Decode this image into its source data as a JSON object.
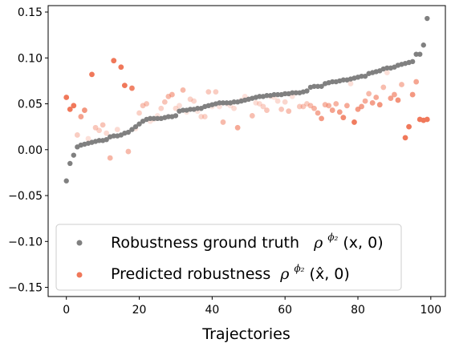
{
  "chart_data": {
    "type": "scatter",
    "title": "",
    "xlabel": "Trajectories",
    "ylabel": "",
    "xlim": [
      -5,
      104
    ],
    "ylim": [
      -0.16,
      0.157
    ],
    "xticks": [
      "0",
      "20",
      "40",
      "60",
      "80",
      "100"
    ],
    "yticks": [
      "−0.15",
      "−0.10",
      "−0.05",
      "0.00",
      "0.05",
      "0.10",
      "0.15"
    ],
    "grid": false,
    "legend_position": "lower-left",
    "series": [
      {
        "name": "ground_truth",
        "label": "Robustness ground truth",
        "math": "ρ",
        "sup": "ϕ₂",
        "args": "(x, 0)",
        "color": "#808080",
        "x": [
          0,
          1,
          2,
          3,
          4,
          5,
          6,
          7,
          8,
          9,
          10,
          11,
          12,
          13,
          14,
          15,
          16,
          17,
          18,
          19,
          20,
          21,
          22,
          23,
          24,
          25,
          26,
          27,
          28,
          29,
          30,
          31,
          32,
          33,
          34,
          35,
          36,
          37,
          38,
          39,
          40,
          41,
          42,
          43,
          44,
          45,
          46,
          47,
          48,
          49,
          50,
          51,
          52,
          53,
          54,
          55,
          56,
          57,
          58,
          59,
          60,
          61,
          62,
          63,
          64,
          65,
          66,
          67,
          68,
          69,
          70,
          71,
          72,
          73,
          74,
          75,
          76,
          77,
          78,
          79,
          80,
          81,
          82,
          83,
          84,
          85,
          86,
          87,
          88,
          89,
          90,
          91,
          92,
          93,
          94,
          95,
          96,
          97,
          98,
          99
        ],
        "y": [
          -0.034,
          -0.015,
          -0.006,
          0.003,
          0.005,
          0.006,
          0.007,
          0.008,
          0.009,
          0.01,
          0.01,
          0.011,
          0.014,
          0.015,
          0.015,
          0.016,
          0.018,
          0.019,
          0.022,
          0.025,
          0.028,
          0.031,
          0.033,
          0.034,
          0.034,
          0.034,
          0.034,
          0.035,
          0.036,
          0.036,
          0.037,
          0.042,
          0.043,
          0.043,
          0.044,
          0.044,
          0.045,
          0.045,
          0.047,
          0.048,
          0.049,
          0.05,
          0.051,
          0.051,
          0.051,
          0.051,
          0.052,
          0.052,
          0.053,
          0.054,
          0.055,
          0.056,
          0.057,
          0.058,
          0.058,
          0.059,
          0.059,
          0.06,
          0.06,
          0.06,
          0.061,
          0.061,
          0.062,
          0.062,
          0.062,
          0.063,
          0.064,
          0.068,
          0.069,
          0.069,
          0.069,
          0.072,
          0.073,
          0.074,
          0.074,
          0.075,
          0.076,
          0.076,
          0.077,
          0.078,
          0.079,
          0.08,
          0.08,
          0.083,
          0.084,
          0.085,
          0.086,
          0.088,
          0.089,
          0.089,
          0.09,
          0.092,
          0.093,
          0.094,
          0.095,
          0.096,
          0.104,
          0.104,
          0.114,
          0.143
        ]
      },
      {
        "name": "predicted",
        "label": "Predicted robustness",
        "math": "ρ",
        "sup": "ϕ₂",
        "args": "(x̂, 0)",
        "color": "#f0785a",
        "x": [
          0,
          1,
          2,
          3,
          4,
          5,
          6,
          7,
          8,
          9,
          10,
          11,
          12,
          13,
          14,
          15,
          16,
          17,
          18,
          19,
          20,
          21,
          22,
          23,
          24,
          25,
          26,
          27,
          28,
          29,
          30,
          31,
          32,
          33,
          34,
          35,
          36,
          37,
          38,
          39,
          40,
          41,
          42,
          43,
          44,
          45,
          46,
          47,
          48,
          49,
          50,
          51,
          52,
          53,
          54,
          55,
          56,
          57,
          58,
          59,
          60,
          61,
          62,
          63,
          64,
          65,
          66,
          67,
          68,
          69,
          70,
          71,
          72,
          73,
          74,
          75,
          76,
          77,
          78,
          79,
          80,
          81,
          82,
          83,
          84,
          85,
          86,
          87,
          88,
          89,
          90,
          91,
          92,
          93,
          94,
          95,
          96,
          97,
          98,
          99
        ],
        "y": [
          0.057,
          0.044,
          0.048,
          0.016,
          0.036,
          0.043,
          0.012,
          0.082,
          0.024,
          0.021,
          0.027,
          0.018,
          -0.009,
          0.097,
          0.022,
          0.09,
          0.07,
          -0.002,
          0.067,
          0.023,
          0.04,
          0.048,
          0.05,
          0.031,
          0.033,
          0.037,
          0.045,
          0.052,
          0.058,
          0.06,
          0.045,
          0.048,
          0.065,
          0.041,
          0.055,
          0.053,
          0.042,
          0.036,
          0.036,
          0.063,
          0.047,
          0.063,
          0.047,
          0.03,
          0.05,
          0.048,
          0.045,
          0.024,
          0.054,
          0.058,
          0.055,
          0.037,
          0.051,
          0.05,
          0.047,
          0.043,
          0.058,
          0.057,
          0.053,
          0.044,
          0.052,
          0.042,
          0.058,
          0.062,
          0.047,
          0.047,
          0.05,
          0.048,
          0.045,
          0.04,
          0.034,
          0.049,
          0.048,
          0.043,
          0.05,
          0.041,
          0.035,
          0.048,
          0.072,
          0.03,
          0.044,
          0.047,
          0.053,
          0.061,
          0.051,
          0.057,
          0.049,
          0.068,
          0.084,
          0.056,
          0.06,
          0.054,
          0.071,
          0.013,
          0.025,
          0.06,
          0.074,
          0.033,
          0.032,
          0.033
        ]
      }
    ]
  }
}
